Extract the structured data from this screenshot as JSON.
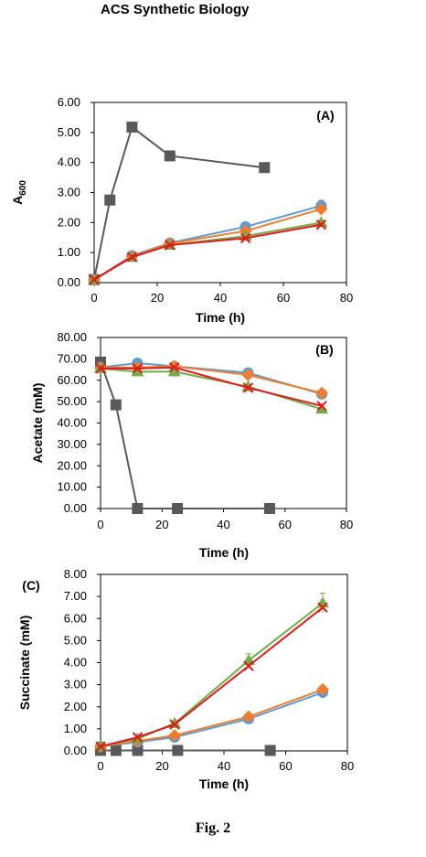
{
  "header": {
    "journal": "ACS Synthetic Biology"
  },
  "caption": "Fig. 2",
  "colors": {
    "grey": "#595959",
    "blue": "#5b9bd5",
    "orange": "#ed7d31",
    "green": "#70ad47",
    "red": "#e31a1c"
  },
  "chart_data": [
    {
      "type": "line",
      "panel_label": "(A)",
      "xlabel": "Time (h)",
      "ylabel": "A",
      "ylabel_sub": "600",
      "xlim": [
        0,
        80
      ],
      "ylim": [
        0,
        6
      ],
      "xticks": [
        "0",
        "20",
        "40",
        "60",
        "80"
      ],
      "yticks": [
        "0.00",
        "1.00",
        "2.00",
        "3.00",
        "4.00",
        "5.00",
        "6.00"
      ],
      "grid": false,
      "legend": "none",
      "series": [
        {
          "color": "grey",
          "marker": "square",
          "x": [
            0,
            5,
            12,
            24,
            54
          ],
          "y": [
            0.1,
            2.75,
            5.18,
            4.22,
            3.83
          ]
        },
        {
          "color": "blue",
          "marker": "circle",
          "x": [
            0,
            12,
            24,
            48,
            72
          ],
          "y": [
            0.1,
            0.9,
            1.32,
            1.86,
            2.56
          ],
          "err": [
            0,
            0.05,
            0.05,
            0.05,
            0.18
          ]
        },
        {
          "color": "orange",
          "marker": "diamond",
          "x": [
            0,
            12,
            24,
            48,
            72
          ],
          "y": [
            0.1,
            0.88,
            1.3,
            1.72,
            2.45
          ]
        },
        {
          "color": "green",
          "marker": "triangle",
          "x": [
            0,
            12,
            24,
            48,
            72
          ],
          "y": [
            0.1,
            0.85,
            1.25,
            1.55,
            2.0
          ]
        },
        {
          "color": "red",
          "marker": "x",
          "x": [
            0,
            12,
            24,
            48,
            72
          ],
          "y": [
            0.1,
            0.85,
            1.25,
            1.48,
            1.93
          ]
        }
      ]
    },
    {
      "type": "line",
      "panel_label": "(B)",
      "xlabel": "Time (h)",
      "ylabel": "Acetate  (mM)",
      "xlim": [
        0,
        80
      ],
      "ylim": [
        0,
        80
      ],
      "xticks": [
        "0",
        "20",
        "40",
        "60",
        "80"
      ],
      "yticks": [
        "0.00",
        "10.00",
        "20.00",
        "30.00",
        "40.00",
        "50.00",
        "60.00",
        "70.00",
        "80.00"
      ],
      "grid": false,
      "legend": "none",
      "series": [
        {
          "color": "grey",
          "marker": "square",
          "x": [
            0,
            5,
            12,
            25,
            55
          ],
          "y": [
            68.5,
            48.5,
            0,
            0,
            0
          ]
        },
        {
          "color": "blue",
          "marker": "circle",
          "x": [
            0,
            12,
            24,
            48,
            72
          ],
          "y": [
            66,
            68,
            66.5,
            63.5,
            53.5
          ]
        },
        {
          "color": "orange",
          "marker": "diamond",
          "x": [
            0,
            12,
            24,
            48,
            72
          ],
          "y": [
            66,
            66,
            66.5,
            62.5,
            54
          ]
        },
        {
          "color": "green",
          "marker": "triangle",
          "x": [
            0,
            12,
            24,
            48,
            72
          ],
          "y": [
            65.5,
            64,
            64,
            57,
            46.5
          ],
          "err": [
            0,
            0,
            2.5,
            0,
            0
          ]
        },
        {
          "color": "red",
          "marker": "x",
          "x": [
            0,
            12,
            24,
            48,
            72
          ],
          "y": [
            65.5,
            65.5,
            66,
            56.5,
            48
          ]
        }
      ]
    },
    {
      "type": "line",
      "panel_label": "(C)",
      "xlabel": "Time (h)",
      "ylabel": "Succinate (mM)",
      "xlim": [
        0,
        80
      ],
      "ylim": [
        0,
        8
      ],
      "xticks": [
        "0",
        "20",
        "40",
        "60",
        "80"
      ],
      "yticks": [
        "0.00",
        "1.00",
        "2.00",
        "3.00",
        "4.00",
        "5.00",
        "6.00",
        "7.00",
        "8.00"
      ],
      "grid": false,
      "legend": "none",
      "series": [
        {
          "color": "grey",
          "marker": "square",
          "x": [
            0,
            5,
            12,
            25,
            55
          ],
          "y": [
            0.02,
            0.02,
            0.02,
            0.02,
            0.02
          ]
        },
        {
          "color": "blue",
          "marker": "circle",
          "x": [
            0,
            12,
            24,
            48,
            72
          ],
          "y": [
            0.2,
            0.4,
            0.62,
            1.45,
            2.65
          ]
        },
        {
          "color": "orange",
          "marker": "diamond",
          "x": [
            0,
            12,
            24,
            48,
            72
          ],
          "y": [
            0.2,
            0.45,
            0.7,
            1.55,
            2.78
          ]
        },
        {
          "color": "green",
          "marker": "triangle",
          "x": [
            0,
            12,
            24,
            48,
            72
          ],
          "y": [
            0.2,
            0.55,
            1.25,
            4.1,
            6.7
          ],
          "err": [
            0,
            0,
            0,
            0.3,
            0.45
          ]
        },
        {
          "color": "red",
          "marker": "x",
          "x": [
            0,
            12,
            24,
            48,
            72
          ],
          "y": [
            0.2,
            0.62,
            1.2,
            3.85,
            6.5
          ]
        }
      ]
    }
  ]
}
